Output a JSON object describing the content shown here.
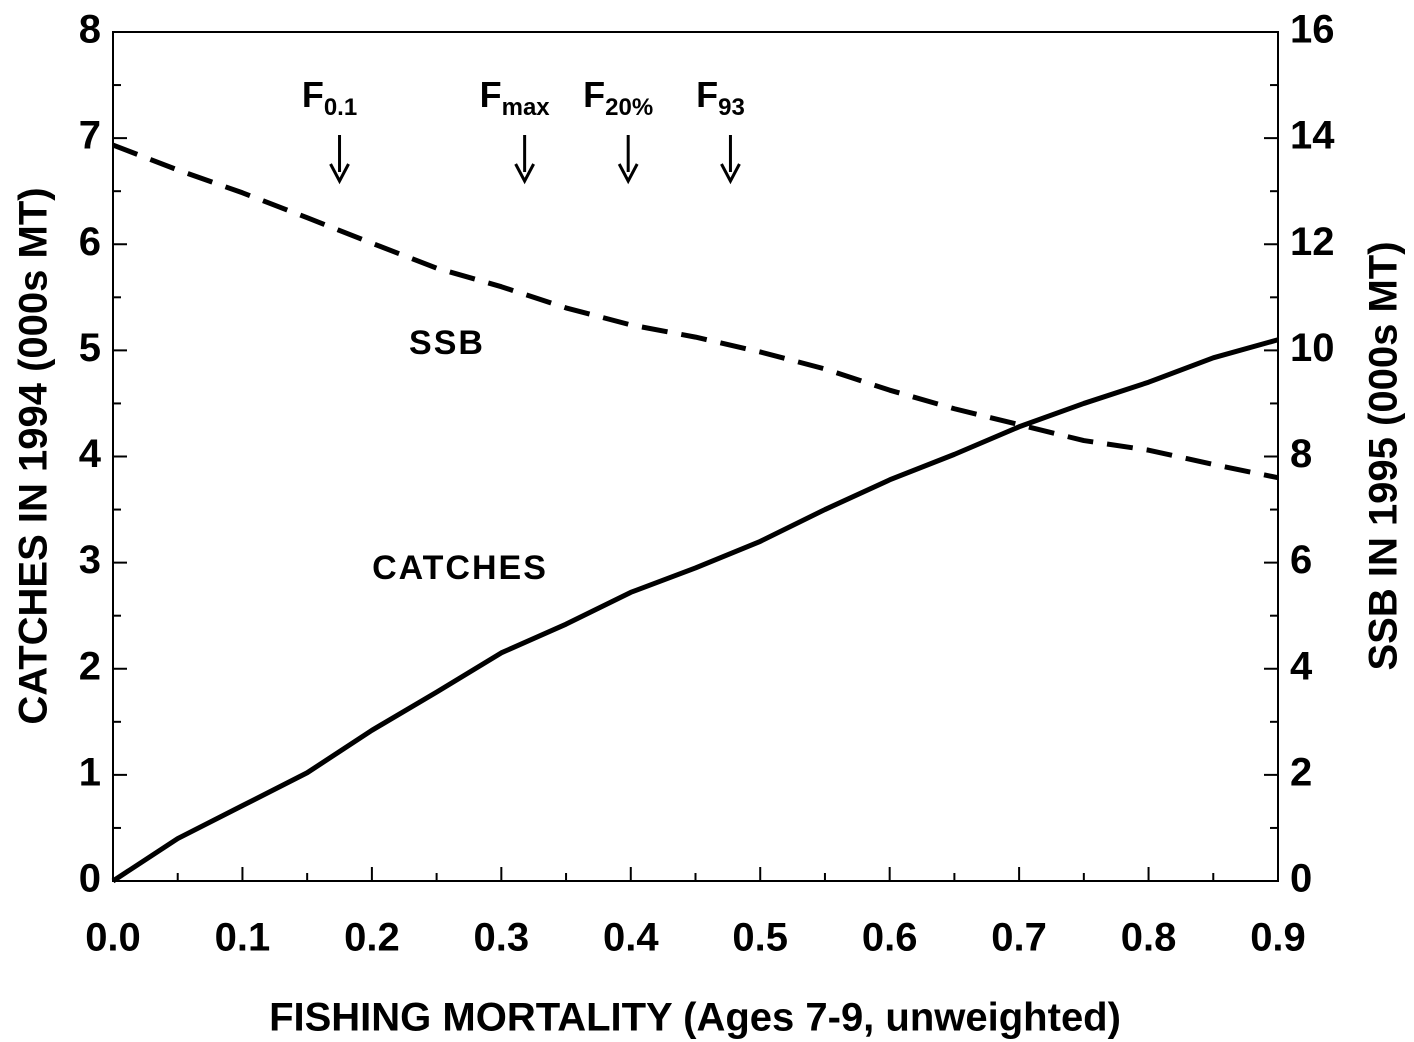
{
  "chart_data": {
    "type": "line",
    "xlabel": "FISHING MORTALITY (Ages 7-9, unweighted)",
    "ylabel": "CATCHES IN 1994 (000s MT)",
    "y2label": "SSB IN 1995 (000s MT)",
    "x": [
      0,
      0.05,
      0.1,
      0.15,
      0.2,
      0.25,
      0.3,
      0.35,
      0.4,
      0.45,
      0.5,
      0.55,
      0.6,
      0.65,
      0.7,
      0.75,
      0.8,
      0.85,
      0.9
    ],
    "series": [
      {
        "name": "CATCHES",
        "color": "#000000",
        "dash": false,
        "values": [
          0,
          0.4,
          0.71,
          1.02,
          1.42,
          1.78,
          2.15,
          2.42,
          2.72,
          2.95,
          3.2,
          3.5,
          3.78,
          4.02,
          4.28,
          4.5,
          4.7,
          4.93,
          5.1
        ]
      },
      {
        "name": "SSB",
        "color": "#000000",
        "dash": true,
        "axis": "y2",
        "values": [
          13.87,
          13.4,
          12.97,
          12.5,
          12.02,
          11.55,
          11.2,
          10.8,
          10.48,
          10.25,
          9.97,
          9.65,
          9.25,
          8.9,
          8.6,
          8.3,
          8.12,
          7.85,
          7.6
        ]
      }
    ],
    "annotations": [
      {
        "text": "F",
        "sub": "0.1",
        "x": 0.175
      },
      {
        "text": "F",
        "sub": "max",
        "x": 0.318
      },
      {
        "text": "F",
        "sub": "20%",
        "x": 0.398
      },
      {
        "text": "F",
        "sub": "93",
        "x": 0.477
      }
    ],
    "xlim": [
      0,
      0.9
    ],
    "xticks": [
      {
        "value": 0,
        "label": "0.0"
      },
      0.1,
      0.2,
      0.3,
      0.4,
      0.5,
      0.6,
      0.7,
      0.8,
      0.9
    ],
    "ylim": [
      0,
      8
    ],
    "yticks": [
      0,
      1,
      2,
      3,
      4,
      5,
      6,
      7,
      8
    ],
    "y2lim": [
      0,
      16
    ],
    "y2ticks": [
      0,
      2,
      4,
      6,
      8,
      10,
      12,
      14,
      16
    ]
  }
}
